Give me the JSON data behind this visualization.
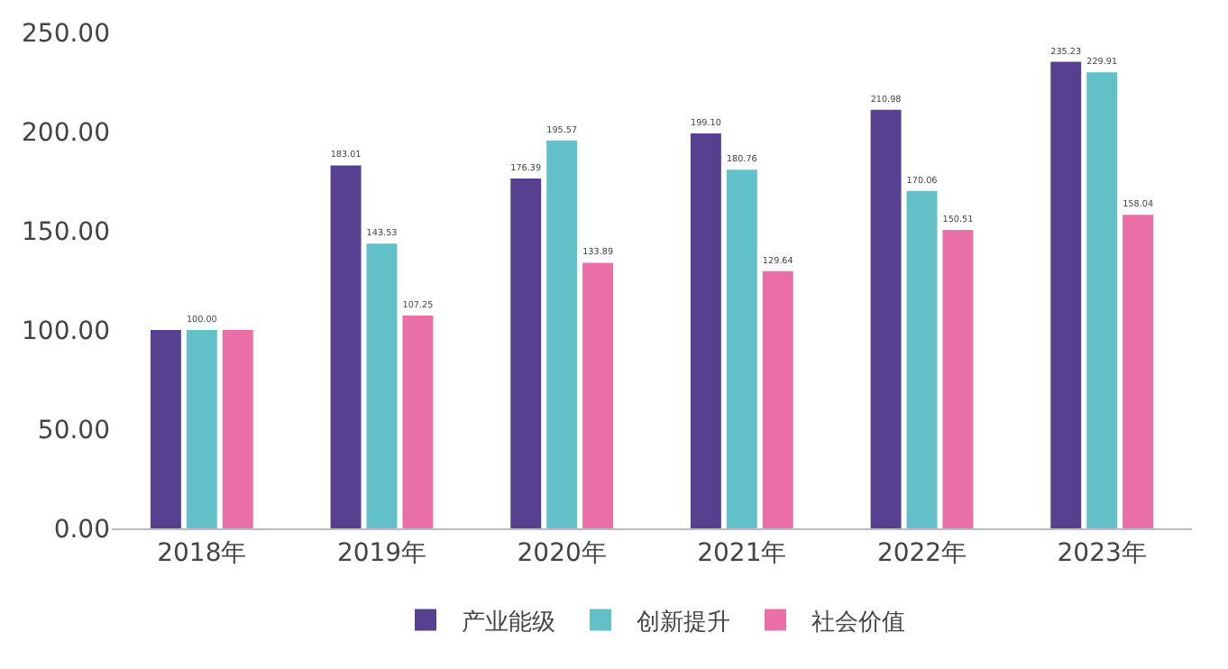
{
  "chart_data": {
    "type": "bar",
    "categories": [
      "2018年",
      "2019年",
      "2020年",
      "2021年",
      "2022年",
      "2023年"
    ],
    "series": [
      {
        "name": "产业能级",
        "color": "#56408f",
        "values": [
          100,
          183.01,
          176.39,
          199.1,
          210.98,
          235.23
        ],
        "value_labels": [
          null,
          "183.01",
          "176.39",
          "199.10",
          "210.98",
          "235.23"
        ]
      },
      {
        "name": "创新提升",
        "color": "#62c1c8",
        "values": [
          100,
          143.53,
          195.57,
          180.76,
          170.06,
          229.91
        ],
        "value_labels": [
          "100.00",
          "143.53",
          "195.57",
          "180.76",
          "170.06",
          "229.91"
        ]
      },
      {
        "name": "社会价值",
        "color": "#ea6fa7",
        "values": [
          100,
          107.25,
          133.89,
          129.64,
          150.51,
          158.04
        ],
        "value_labels": [
          null,
          "107.25",
          "133.89",
          "129.64",
          "150.51",
          "158.04"
        ]
      }
    ],
    "ylim": [
      0,
      250
    ],
    "yticks": [
      {
        "value": 0,
        "label": "0.00"
      },
      {
        "value": 50,
        "label": "50.00"
      },
      {
        "value": 100,
        "label": "100.00"
      },
      {
        "value": 150,
        "label": "150.00"
      },
      {
        "value": 200,
        "label": "200.00"
      },
      {
        "value": 250,
        "label": "250.00"
      }
    ],
    "grid": false,
    "legend": "bottom"
  }
}
